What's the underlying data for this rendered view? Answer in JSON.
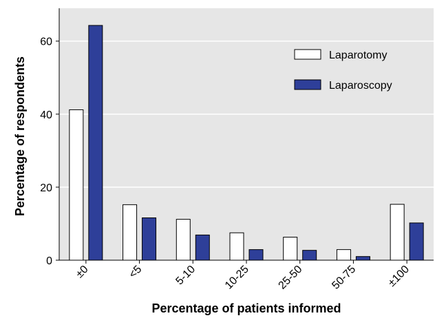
{
  "chart_data": {
    "type": "bar",
    "title": "",
    "xlabel": "Percentage of patients informed",
    "ylabel": "Percentage of respondents",
    "categories": [
      "±0",
      "<5",
      "5-10",
      "10-25",
      "25-50",
      "50-75",
      "±100"
    ],
    "series": [
      {
        "name": "Laparotomy",
        "values": [
          41.2,
          15.2,
          11.2,
          7.5,
          6.3,
          2.9,
          15.3
        ],
        "color": "#ffffff"
      },
      {
        "name": "Laparoscopy",
        "values": [
          64.3,
          11.6,
          6.9,
          2.9,
          2.7,
          1.0,
          10.2
        ],
        "color": "#2e3f99"
      }
    ],
    "ylim": [
      0,
      69
    ],
    "yticks": [
      0,
      20,
      40,
      60
    ],
    "grid": "horizontal",
    "legend_position": "top-right",
    "plot_background": "#e6e6e6"
  }
}
